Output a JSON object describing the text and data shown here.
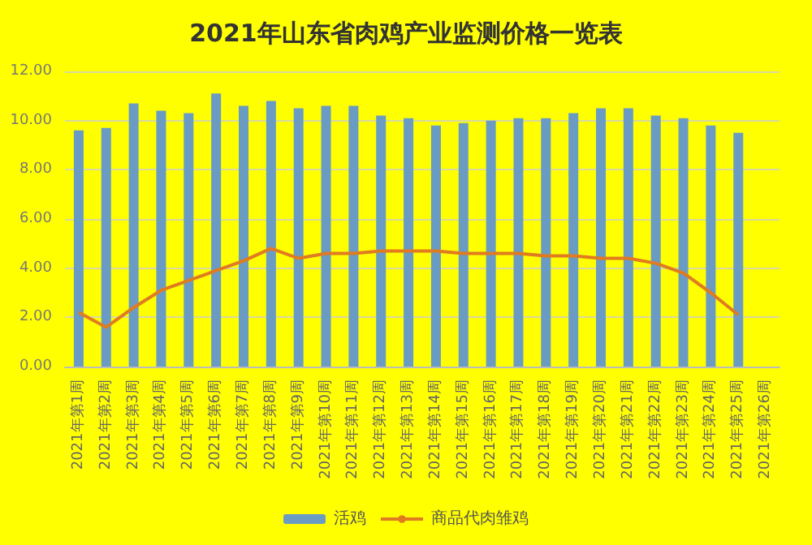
{
  "chart_data": {
    "type": "bar",
    "title": "2021年山东省肉鸡产业监测价格一览表",
    "categories": [
      "2021年第1周",
      "2021年第2周",
      "2021年第3周",
      "2021年第4周",
      "2021年第5周",
      "2021年第6周",
      "2021年第7周",
      "2021年第8周",
      "2021年第9周",
      "2021年第10周",
      "2021年第11周",
      "2021年第12周",
      "2021年第13周",
      "2021年第14周",
      "2021年第15周",
      "2021年第16周",
      "2021年第17周",
      "2021年第18周",
      "2021年第19周",
      "2021年第20周",
      "2021年第21周",
      "2021年第22周",
      "2021年第23周",
      "2021年第24周",
      "2021年第25周",
      "2021年第26周"
    ],
    "series": [
      {
        "name": "活鸡",
        "color": "#6a9bc3",
        "values": [
          9.6,
          9.7,
          10.7,
          10.4,
          10.3,
          11.1,
          10.6,
          10.8,
          10.5,
          10.6,
          10.6,
          10.2,
          10.1,
          9.8,
          9.9,
          10.0,
          10.1,
          10.1,
          10.3,
          10.5,
          10.5,
          10.2,
          10.1,
          9.8,
          9.5,
          null
        ]
      },
      {
        "name": "商品代肉雏鸡",
        "type": "line",
        "color": "#e07b20",
        "values": [
          2.2,
          1.6,
          2.4,
          3.1,
          3.5,
          3.9,
          4.3,
          4.8,
          4.4,
          4.6,
          4.6,
          4.7,
          4.7,
          4.7,
          4.6,
          4.6,
          4.6,
          4.5,
          4.5,
          4.4,
          4.4,
          4.2,
          3.8,
          3.0,
          2.1,
          null
        ]
      }
    ],
    "ylim": [
      0,
      12
    ],
    "yticks": [
      {
        "value": 0,
        "label": "0.00"
      },
      {
        "value": 2,
        "label": "2.00"
      },
      {
        "value": 4,
        "label": "4.00"
      },
      {
        "value": 6,
        "label": "6.00"
      },
      {
        "value": 8,
        "label": "8.00"
      },
      {
        "value": 10,
        "label": "10.00"
      },
      {
        "value": 12,
        "label": "12.00"
      }
    ],
    "grid": "y",
    "legend": "bottom",
    "marker": "none"
  }
}
